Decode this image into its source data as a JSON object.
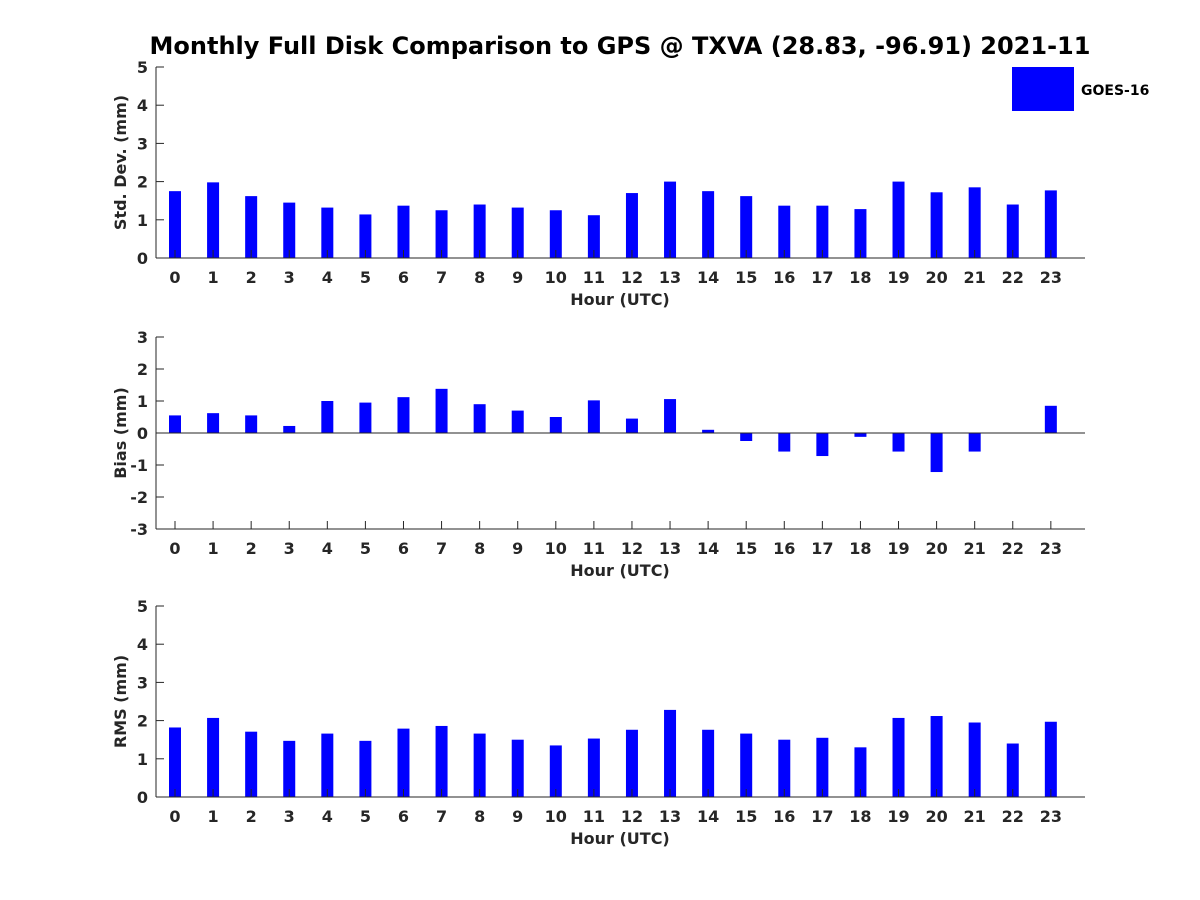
{
  "title": "Monthly Full Disk Comparison to GPS @ TXVA (28.83, -96.91) 2021-11",
  "legend": {
    "label": "GOES-16",
    "color": "#0000ff",
    "placement": "top-right"
  },
  "chart_data": [
    {
      "type": "bar",
      "xlabel": "Hour (UTC)",
      "ylabel": "Std. Dev. (mm)",
      "ylim": [
        0,
        5
      ],
      "yticks": [
        0,
        1,
        2,
        3,
        4,
        5
      ],
      "categories": [
        "0",
        "1",
        "2",
        "3",
        "4",
        "5",
        "6",
        "7",
        "8",
        "9",
        "10",
        "11",
        "12",
        "13",
        "14",
        "15",
        "16",
        "17",
        "18",
        "19",
        "20",
        "21",
        "22",
        "23"
      ],
      "series": [
        {
          "name": "GOES-16",
          "color": "#0000ff",
          "values": [
            1.75,
            1.98,
            1.62,
            1.45,
            1.32,
            1.14,
            1.37,
            1.25,
            1.4,
            1.32,
            1.25,
            1.12,
            1.7,
            2.0,
            1.75,
            1.62,
            1.37,
            1.37,
            1.28,
            2.0,
            1.72,
            1.85,
            1.4,
            1.77
          ]
        }
      ]
    },
    {
      "type": "bar",
      "xlabel": "Hour (UTC)",
      "ylabel": "Bias (mm)",
      "ylim": [
        -3,
        3
      ],
      "yticks": [
        -3,
        -2,
        -1,
        0,
        1,
        2,
        3
      ],
      "categories": [
        "0",
        "1",
        "2",
        "3",
        "4",
        "5",
        "6",
        "7",
        "8",
        "9",
        "10",
        "11",
        "12",
        "13",
        "14",
        "15",
        "16",
        "17",
        "18",
        "19",
        "20",
        "21",
        "22",
        "23"
      ],
      "series": [
        {
          "name": "GOES-16",
          "color": "#0000ff",
          "values": [
            0.55,
            0.62,
            0.55,
            0.22,
            1.0,
            0.95,
            1.12,
            1.38,
            0.9,
            0.7,
            0.5,
            1.02,
            0.45,
            1.06,
            0.1,
            -0.25,
            -0.58,
            -0.72,
            -0.12,
            -0.58,
            -1.22,
            -0.58,
            0.0,
            0.85
          ]
        }
      ]
    },
    {
      "type": "bar",
      "xlabel": "Hour (UTC)",
      "ylabel": "RMS (mm)",
      "ylim": [
        0,
        5
      ],
      "yticks": [
        0,
        1,
        2,
        3,
        4,
        5
      ],
      "categories": [
        "0",
        "1",
        "2",
        "3",
        "4",
        "5",
        "6",
        "7",
        "8",
        "9",
        "10",
        "11",
        "12",
        "13",
        "14",
        "15",
        "16",
        "17",
        "18",
        "19",
        "20",
        "21",
        "22",
        "23"
      ],
      "series": [
        {
          "name": "GOES-16",
          "color": "#0000ff",
          "values": [
            1.82,
            2.07,
            1.71,
            1.47,
            1.66,
            1.47,
            1.79,
            1.86,
            1.66,
            1.5,
            1.35,
            1.53,
            1.76,
            2.28,
            1.76,
            1.66,
            1.5,
            1.55,
            1.3,
            2.07,
            2.12,
            1.95,
            1.4,
            1.97
          ]
        }
      ]
    }
  ]
}
